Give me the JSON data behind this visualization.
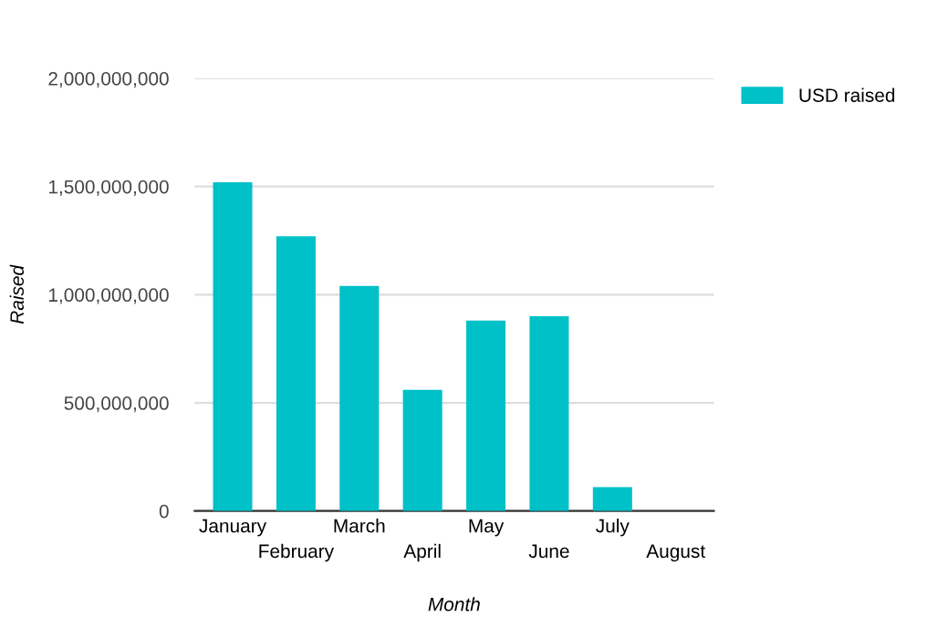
{
  "chart_data": {
    "type": "bar",
    "xlabel": "Month",
    "ylabel": "Raised",
    "categories": [
      "January",
      "February",
      "March",
      "April",
      "May",
      "June",
      "July",
      "August"
    ],
    "series": [
      {
        "name": "USD raised",
        "color": "#00c0c8",
        "values": [
          1520000000,
          1270000000,
          1040000000,
          560000000,
          880000000,
          900000000,
          110000000,
          0
        ]
      }
    ],
    "ylim": [
      0,
      2000000000
    ],
    "yticks": [
      {
        "value": 0,
        "label": "0"
      },
      {
        "value": 500000000,
        "label": "500,000,000"
      },
      {
        "value": 1000000000,
        "label": "1,000,000,000"
      },
      {
        "value": 1500000000,
        "label": "1,500,000,000"
      },
      {
        "value": 2000000000,
        "label": "2,000,000,000"
      }
    ],
    "grid": "y",
    "legend": "top right"
  }
}
